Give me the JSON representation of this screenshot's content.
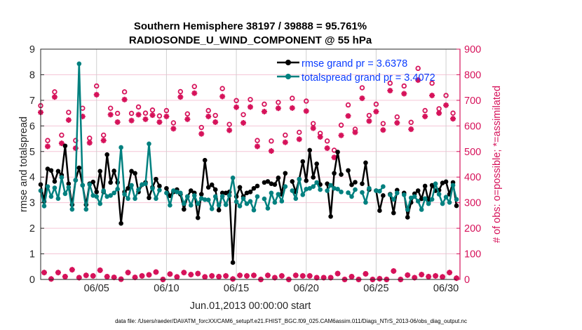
{
  "colors": {
    "rmse": "#000000",
    "totalspread": "#00807f",
    "obs": "#d6125a",
    "legend_text": "#0a3cff",
    "xgrid": "#d0d0d0",
    "ygrid": "#f5c6d6"
  },
  "chart_data": {
    "type": "line",
    "title": [
      "Southern Hemisphere 38197 / 39888 = 95.761%",
      "RADIOSONDE_U_WIND_COMPONENT @ 55 hPa"
    ],
    "xlabel": "Jun.01,2013 00:00:00 start",
    "ylabel": "rmse and totalspread",
    "y2label": "# of obs: o=possible; *=assimilated",
    "footnote": "data file: /Users/raeder/DAI/ATM_forcXX/CAM6_setup/f.e21.FHIST_BGC.f09_025.CAM6assim.011/Diags_NTrS_2013-06/obs_diag_output.nc",
    "xlim": [
      1,
      31
    ],
    "ylim": [
      0,
      9
    ],
    "y2lim": [
      0,
      900
    ],
    "x_unit": "day of June 2013",
    "x_ticks": [
      {
        "x": 5,
        "label": "06/05"
      },
      {
        "x": 10,
        "label": "06/10"
      },
      {
        "x": 15,
        "label": "06/15"
      },
      {
        "x": 20,
        "label": "06/20"
      },
      {
        "x": 25,
        "label": "06/25"
      },
      {
        "x": 30,
        "label": "06/30"
      }
    ],
    "y_ticks": [
      "0",
      "1",
      "2",
      "3",
      "4",
      "5",
      "6",
      "7",
      "8",
      "9"
    ],
    "y2_ticks": [
      "0",
      "100",
      "200",
      "300",
      "400",
      "500",
      "600",
      "700",
      "800",
      "900"
    ],
    "grid": true,
    "legend": {
      "placement": "top-right",
      "entries": [
        "rmse grand pr = 3.6378",
        "totalspread grand pr = 3.4072"
      ]
    },
    "x_start": 1,
    "x_step_days": 0.25,
    "series": [
      {
        "name": "rmse grand pr = 3.6378",
        "axis": "left",
        "values": [
          3.71,
          3.05,
          4.32,
          4.26,
          3.83,
          4.23,
          4.08,
          5.22,
          3.74,
          2.92,
          3.88,
          4.36,
          3.68,
          2.92,
          3.74,
          3.81,
          3.42,
          4.23,
          3.42,
          4.88,
          3.79,
          4.24,
          3.79,
          2.19,
          3.42,
          3.56,
          4.23,
          4.15,
          3.42,
          3.7,
          3.79,
          3.19,
          3.6,
          3.92,
          3.65,
          null,
          3.56,
          3.27,
          3.42,
          3.51,
          3.33,
          2.74,
          3.24,
          3.47,
          3.38,
          2.41,
          3.33,
          4.66,
          3.6,
          3.7,
          3.51,
          2.71,
          3.38,
          3.38,
          3.42,
          0.66,
          3.24,
          3.6,
          3.24,
          3.38,
          3.42,
          3.56,
          3.65,
          null,
          3.79,
          3.83,
          3.74,
          3.71,
          3.97,
          3.33,
          4.15,
          null,
          3.83,
          3.42,
          3.92,
          4.61,
          3.86,
          5.05,
          3.99,
          4.52,
          3.71,
          null,
          3.74,
          2.46,
          4.15,
          4.98,
          4.1,
          null,
          4.26,
          3.7,
          3.8,
          null,
          3.74,
          4.56,
          3.51,
          null,
          3.47,
          2.69,
          3.28,
          null,
          3.33,
          2.6,
          3.49,
          null,
          3.38,
          2.43,
          3.01,
          3.35,
          3.47,
          3.15,
          3.65,
          3.06,
          3.68,
          3.47,
          3.49,
          3.77,
          3.82,
          3.33,
          3.79,
          2.88
        ]
      },
      {
        "name": "totalspread grand pr = 3.4072",
        "axis": "left",
        "values": [
          3.47,
          2.87,
          3.63,
          3.24,
          3.58,
          3.16,
          3.99,
          3.35,
          3.6,
          2.74,
          3.88,
          8.43,
          3.68,
          2.74,
          3.71,
          3.28,
          3.24,
          2.96,
          3.47,
          3.24,
          3.28,
          3.38,
          3.53,
          5.16,
          3.33,
          3.16,
          3.68,
          3.16,
          3.51,
          3.71,
          3.74,
          5.3,
          3.56,
          3.16,
          3.49,
          null,
          3.38,
          2.9,
          3.47,
          3.42,
          3.38,
          2.96,
          3.24,
          2.9,
          3.28,
          2.96,
          3.17,
          3.12,
          3.11,
          2.76,
          3.24,
          2.9,
          3.25,
          2.92,
          3.28,
          3.97,
          3.04,
          2.87,
          3.16,
          2.96,
          3.05,
          2.71,
          3.24,
          null,
          3.15,
          2.78,
          3.38,
          3.01,
          3.33,
          3.06,
          3.63,
          null,
          3.47,
          3.16,
          3.92,
          3.31,
          3.53,
          3.56,
          3.63,
          3.79,
          3.51,
          null,
          3.47,
          3.68,
          3.56,
          3.53,
          3.42,
          null,
          3.39,
          3.24,
          3.51,
          null,
          3.4,
          3.01,
          3.56,
          null,
          3.47,
          3.45,
          3.63,
          null,
          3.31,
          3.13,
          3.38,
          null,
          3.31,
          2.73,
          3.19,
          3.24,
          3.06,
          2.73,
          3.16,
          2.96,
          3.13,
          3.74,
          3.33,
          2.96,
          3.22,
          3.01,
          3.68,
          3.13
        ]
      },
      {
        "name": "possible",
        "axis": "right",
        "marker": "o",
        "values": [
          679,
          27,
          543,
          2,
          733,
          27,
          564,
          11,
          653,
          38,
          543,
          7,
          669,
          16,
          552,
          14,
          756,
          36,
          564,
          11,
          669,
          8,
          649,
          1,
          733,
          27,
          649,
          8,
          674,
          14,
          650,
          18,
          662,
          29,
          639,
          0,
          660,
          21,
          612,
          10,
          734,
          27,
          647,
          19,
          754,
          23,
          594,
          10,
          660,
          14,
          641,
          11,
          746,
          14,
          606,
          2,
          699,
          16,
          644,
          14,
          703,
          16,
          543,
          0,
          685,
          16,
          541,
          7,
          692,
          14,
          564,
          0,
          708,
          16,
          575,
          14,
          697,
          14,
          609,
          7,
          571,
          7,
          541,
          7,
          505,
          23,
          603,
          0,
          682,
          11,
          587,
          0,
          749,
          22,
          641,
          0,
          685,
          3,
          609,
          0,
          767,
          33,
          635,
          0,
          756,
          17,
          614,
          7,
          825,
          19,
          660,
          11,
          767,
          14,
          667,
          10,
          719,
          27,
          650,
          5
        ]
      },
      {
        "name": "assimilated",
        "axis": "right",
        "marker": "*",
        "values": [
          653,
          27,
          520,
          2,
          713,
          27,
          532,
          11,
          623,
          38,
          513,
          7,
          637,
          16,
          534,
          14,
          722,
          36,
          543,
          11,
          644,
          8,
          615,
          1,
          703,
          27,
          621,
          8,
          644,
          14,
          626,
          18,
          642,
          29,
          615,
          0,
          637,
          21,
          589,
          10,
          713,
          27,
          626,
          19,
          728,
          23,
          569,
          10,
          637,
          14,
          615,
          11,
          715,
          14,
          583,
          2,
          673,
          16,
          612,
          14,
          674,
          16,
          520,
          0,
          656,
          16,
          502,
          7,
          669,
          14,
          536,
          0,
          670,
          16,
          548,
          14,
          658,
          14,
          591,
          7,
          557,
          7,
          513,
          7,
          477,
          23,
          563,
          0,
          639,
          11,
          575,
          0,
          708,
          22,
          619,
          0,
          656,
          3,
          584,
          0,
          738,
          33,
          612,
          0,
          726,
          17,
          587,
          7,
          779,
          19,
          637,
          11,
          719,
          14,
          650,
          10,
          681,
          27,
          628,
          5
        ]
      }
    ]
  }
}
